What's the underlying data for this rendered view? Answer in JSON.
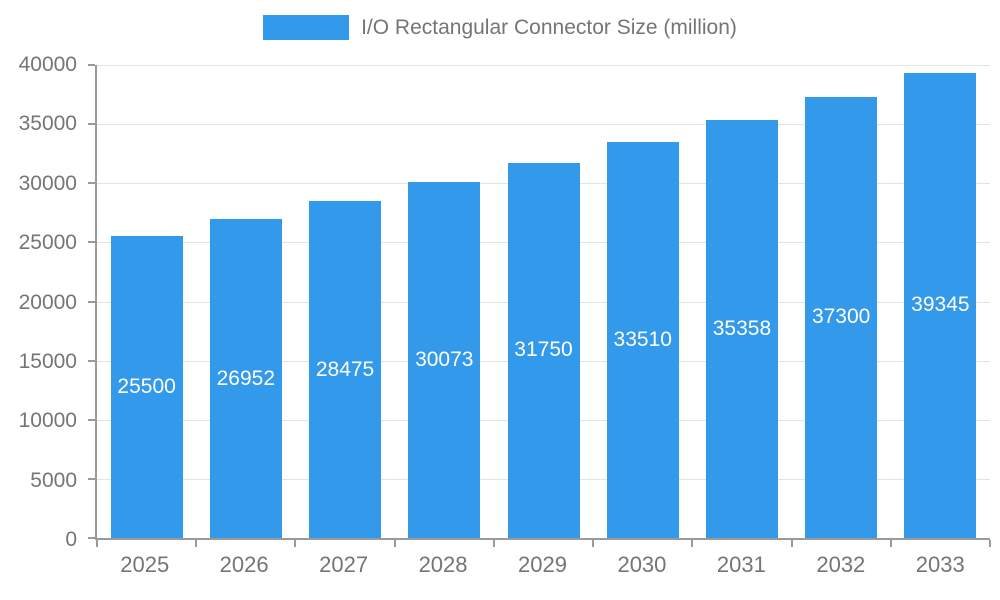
{
  "chart_data": {
    "type": "bar",
    "title": "I/O Rectangular Connector Size (million)",
    "categories": [
      "2025",
      "2026",
      "2027",
      "2028",
      "2029",
      "2030",
      "2031",
      "2032",
      "2033"
    ],
    "values": [
      25500,
      26952,
      28475,
      30073,
      31750,
      33510,
      35358,
      37300,
      39345
    ],
    "series": [
      {
        "name": "I/O Rectangular Connector Size (million)",
        "values": [
          25500,
          26952,
          28475,
          30073,
          31750,
          33510,
          35358,
          37300,
          39345
        ]
      }
    ],
    "xlabel": "",
    "ylabel": "",
    "ylim": [
      0,
      40000
    ],
    "yticks": [
      0,
      5000,
      10000,
      15000,
      20000,
      25000,
      30000,
      35000,
      40000
    ],
    "grid": true,
    "legend_position": "top",
    "bar_color": "#3399EB",
    "value_label_color": "#FFFFFF",
    "axis_text_color": "#757575",
    "gridline_color": "#E3E3E3",
    "axis_line_color": "#9A9A9A"
  }
}
